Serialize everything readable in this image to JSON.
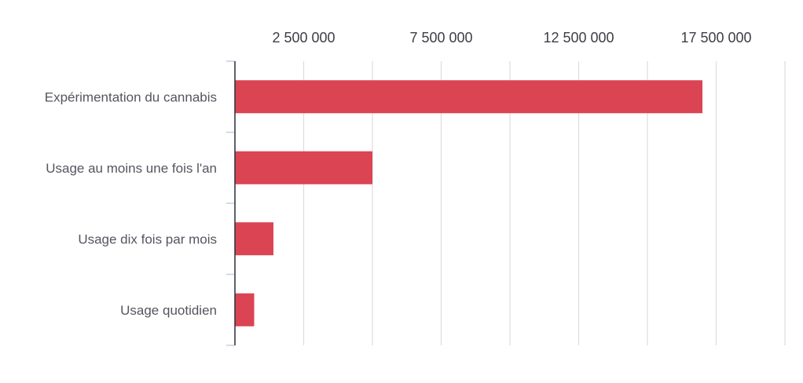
{
  "chart_data": {
    "type": "bar",
    "orientation": "horizontal",
    "title": "",
    "xlabel": "",
    "ylabel": "",
    "categories": [
      "Expérimentation du cannabis",
      "Usage au moins une fois l'an",
      "Usage dix fois par mois",
      "Usage quotidien"
    ],
    "values": [
      17000000,
      5000000,
      1400000,
      700000
    ],
    "xlim": [
      0,
      20000000
    ],
    "x_ticks": [
      2500000,
      5000000,
      7500000,
      10000000,
      12500000,
      15000000,
      17500000,
      20000000
    ],
    "x_tick_labels": [
      "2 500 000",
      "",
      "7 500 000",
      "",
      "12 500 000",
      "",
      "17 500 000",
      ""
    ],
    "x_axis_position": "top",
    "grid": true,
    "bar_color": "#db4453",
    "grid_color": "#dddddd"
  }
}
